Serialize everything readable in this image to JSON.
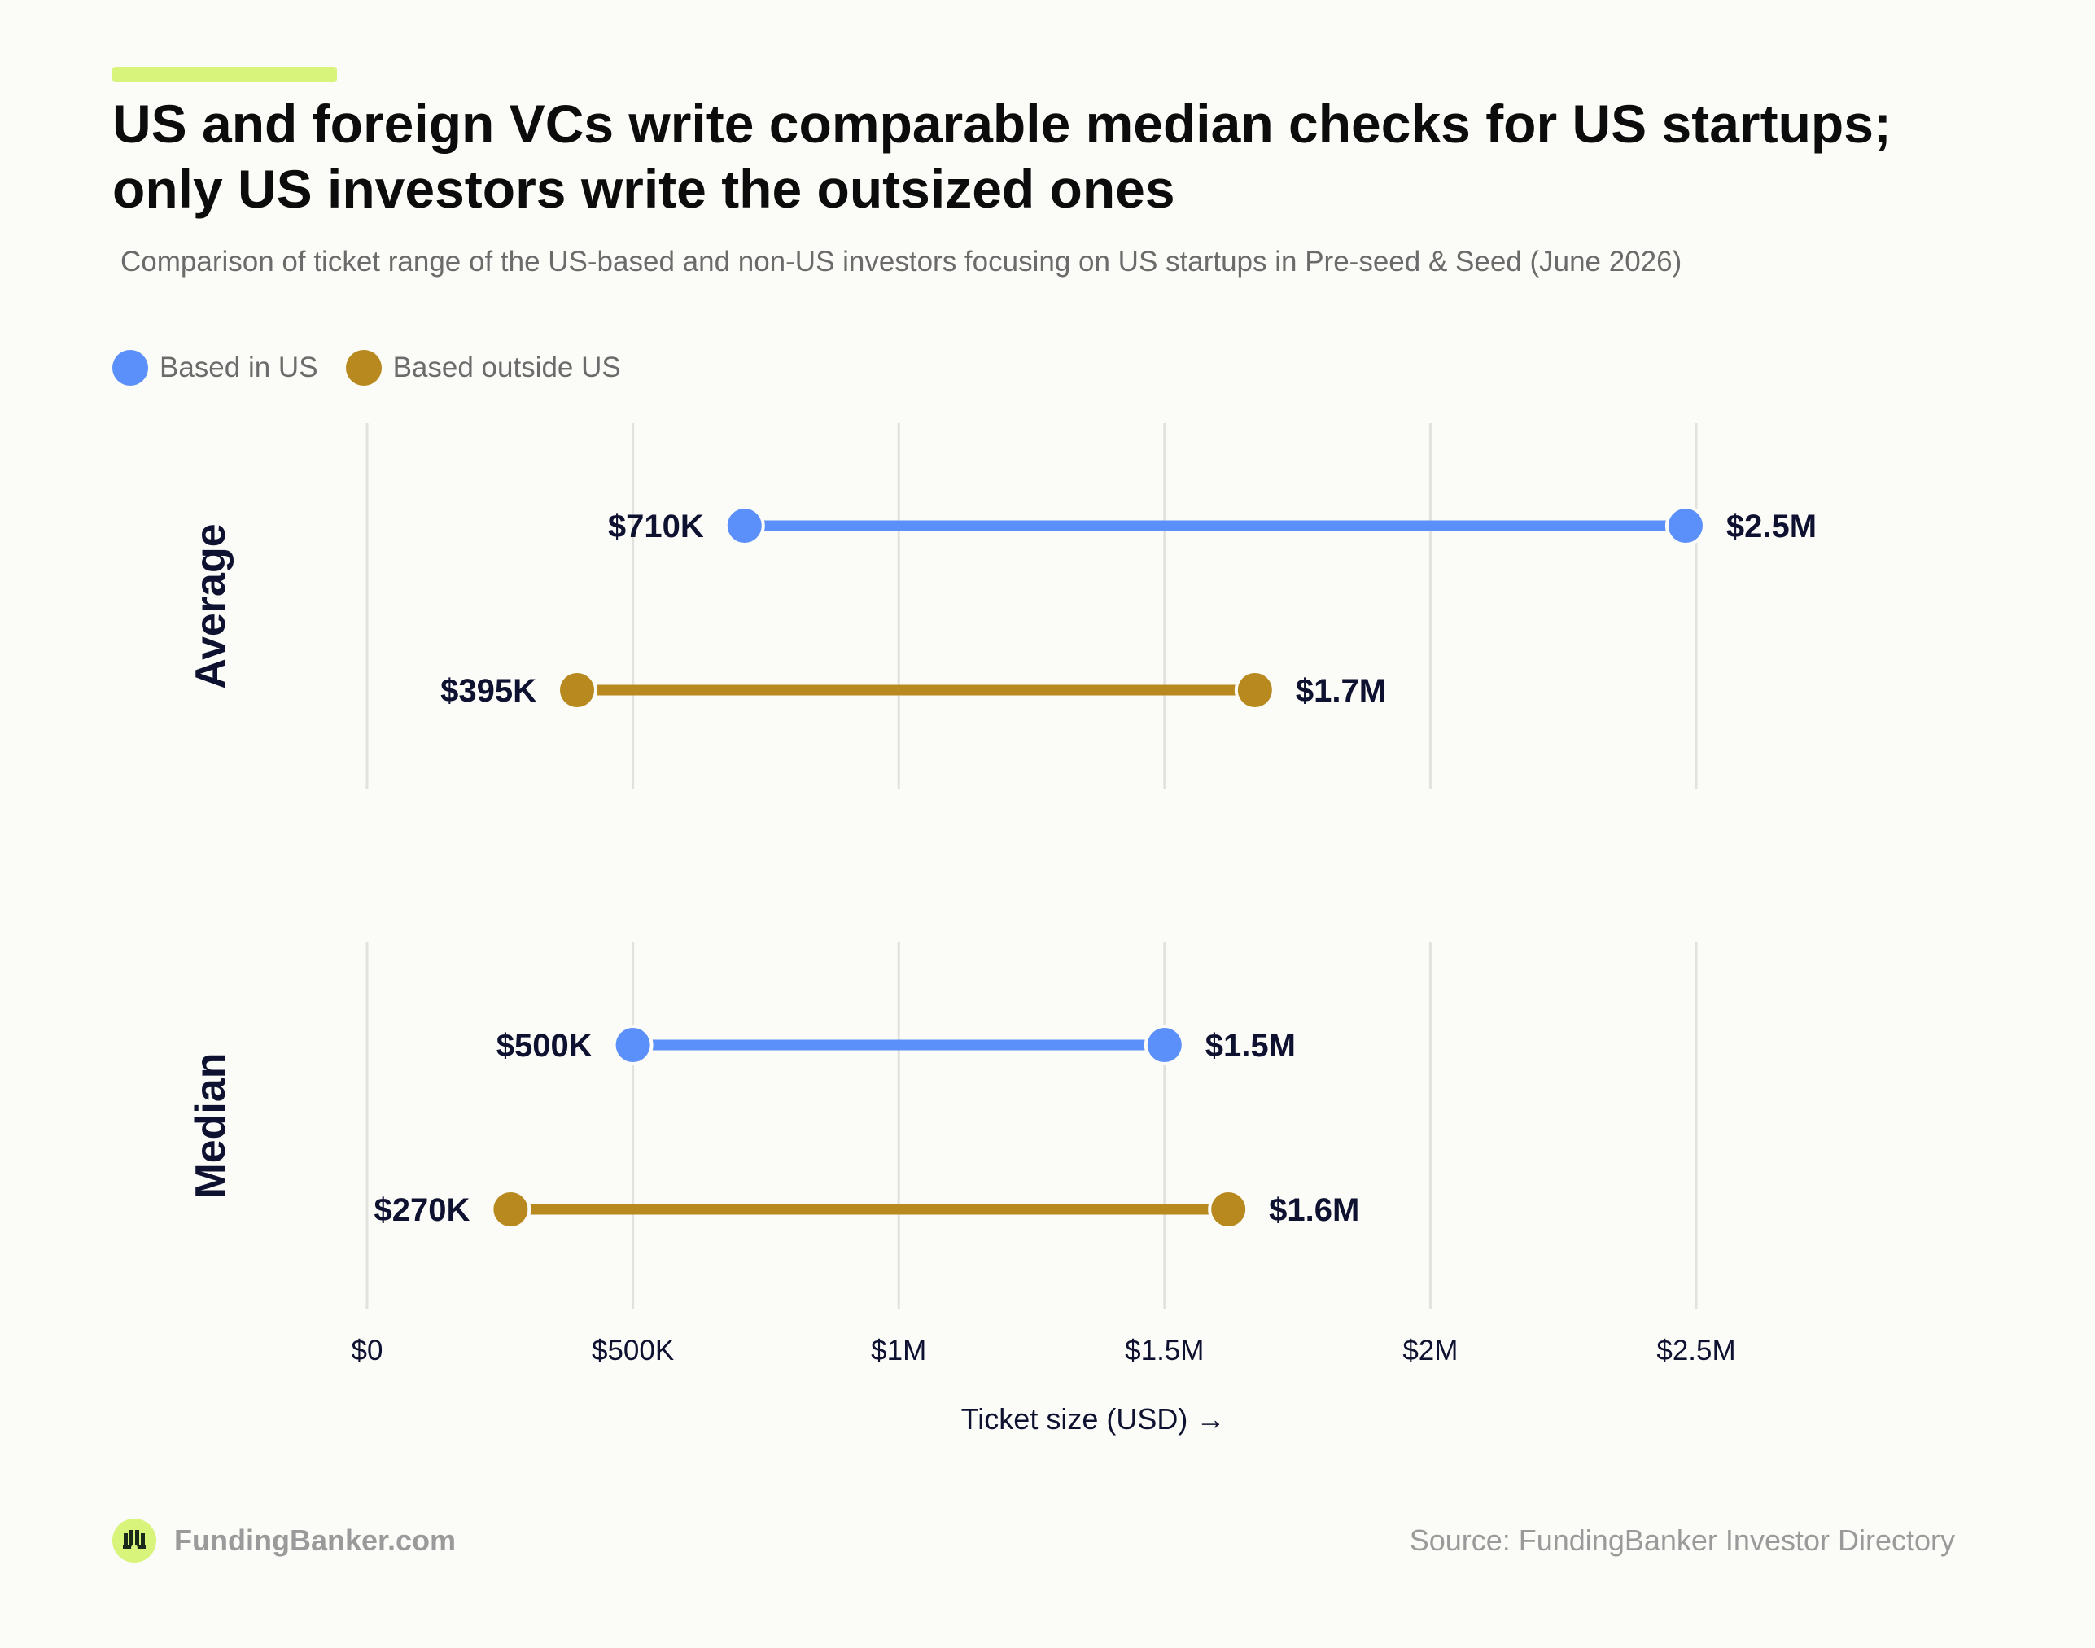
{
  "colors": {
    "us": "#5b8ff9",
    "foreign": "#b8891f",
    "accent": "#d8f47a",
    "grid": "#e2e2dd",
    "text_dark": "#0e1230",
    "text_muted": "#9a9a9a"
  },
  "header": {
    "title_line1": "US and foreign VCs write comparable median checks for US startups;",
    "title_line2": "only US investors write the outsized ones",
    "subtitle": "Comparison of ticket range of the US-based and non-US investors focusing on US startups in Pre-seed & Seed (June 2026)"
  },
  "legend": [
    {
      "label": "Based in US",
      "color": "#5b8ff9"
    },
    {
      "label": "Based outside US",
      "color": "#b8891f"
    }
  ],
  "chart_data": {
    "type": "dumbbell",
    "title": "US and foreign VCs write comparable median checks for US startups; only US investors write the outsized ones",
    "subtitle": "Comparison of ticket range of the US-based and non-US investors focusing on US startups in Pre-seed & Seed (June 2026)",
    "xlabel": "Ticket size (USD) →",
    "ylabel": "",
    "xlim": [
      0,
      2500000
    ],
    "x_ticks": [
      {
        "value": 0,
        "label": "$0"
      },
      {
        "value": 500000,
        "label": "$500K"
      },
      {
        "value": 1000000,
        "label": "$1M"
      },
      {
        "value": 1500000,
        "label": "$1.5M"
      },
      {
        "value": 2000000,
        "label": "$2M"
      },
      {
        "value": 2500000,
        "label": "$2.5M"
      }
    ],
    "grid": true,
    "legend_position": "top-left",
    "groups": [
      {
        "name": "Average",
        "rows": [
          {
            "series": "Based in US",
            "min": 710000,
            "max": 2480000,
            "min_label": "$710K",
            "max_label": "$2.5M"
          },
          {
            "series": "Based outside US",
            "min": 395000,
            "max": 1670000,
            "min_label": "$395K",
            "max_label": "$1.7M"
          }
        ]
      },
      {
        "name": "Median",
        "rows": [
          {
            "series": "Based in US",
            "min": 500000,
            "max": 1500000,
            "min_label": "$500K",
            "max_label": "$1.5M"
          },
          {
            "series": "Based outside US",
            "min": 270000,
            "max": 1620000,
            "min_label": "$270K",
            "max_label": "$1.6M"
          }
        ]
      }
    ]
  },
  "footer": {
    "brand": "FundingBanker.com",
    "source": "Source: FundingBanker Investor Directory"
  }
}
